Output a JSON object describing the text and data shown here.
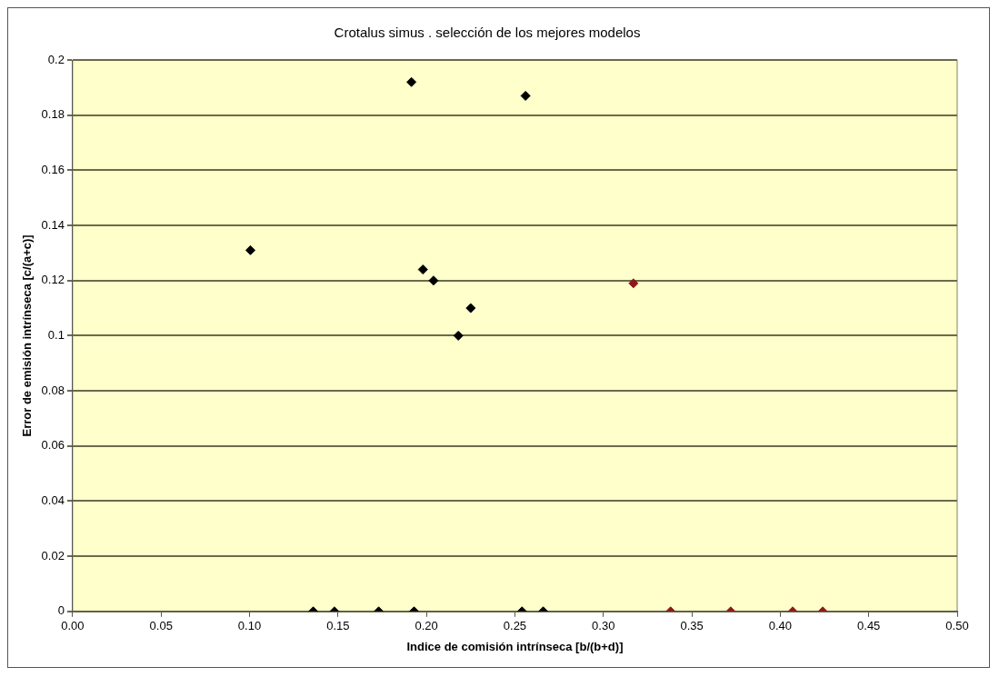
{
  "chart_data": {
    "type": "scatter",
    "title": "Crotalus simus . selección de los mejores modelos",
    "xlabel": "Indice de comisión intrínseca [b/(b+d)]",
    "ylabel": "Error de emisión intrínseca [c/(a+c)]",
    "series": [
      {
        "color": "#000000",
        "x": [
          0.1005,
          0.1915,
          0.256,
          0.198,
          0.204,
          0.225,
          0.218,
          0.136,
          0.148,
          0.173,
          0.193,
          0.254,
          0.266
        ],
        "values": [
          0.131,
          0.192,
          0.187,
          0.124,
          0.12,
          0.11,
          0.1,
          0,
          0,
          0,
          0,
          0,
          0
        ]
      },
      {
        "color": "#8b1a1a",
        "x": [
          0.317,
          0.338,
          0.372,
          0.407,
          0.424
        ],
        "values": [
          0.119,
          0,
          0,
          0,
          0
        ]
      }
    ],
    "xlim": [
      0,
      0.5
    ],
    "xticks": [
      {
        "value": 0,
        "label": "0.00"
      },
      {
        "value": 0.05,
        "label": "0.05"
      },
      {
        "value": 0.1,
        "label": "0.10"
      },
      {
        "value": 0.15,
        "label": "0.15"
      },
      {
        "value": 0.2,
        "label": "0.20"
      },
      {
        "value": 0.25,
        "label": "0.25"
      },
      {
        "value": 0.3,
        "label": "0.30"
      },
      {
        "value": 0.35,
        "label": "0.35"
      },
      {
        "value": 0.4,
        "label": "0.40"
      },
      {
        "value": 0.45,
        "label": "0.45"
      },
      {
        "value": 0.5,
        "label": "0.50"
      }
    ],
    "ylim": [
      0,
      0.2
    ],
    "yticks": [
      0,
      0.02,
      0.04,
      0.06,
      0.08,
      0.1,
      0.12,
      0.14,
      0.16,
      0.18,
      0.2
    ],
    "grid": "y",
    "legend": false,
    "marker": "diamond"
  }
}
